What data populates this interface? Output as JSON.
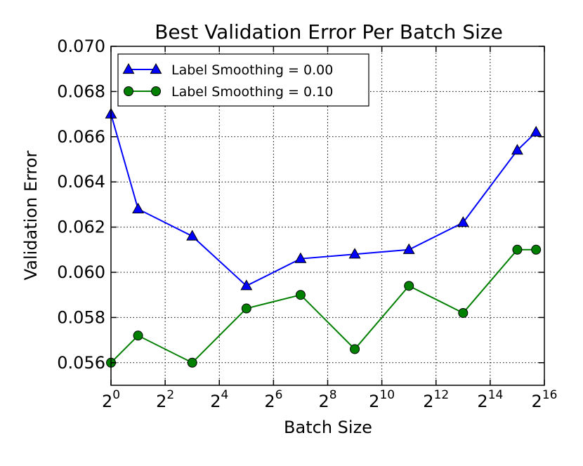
{
  "chart_data": {
    "type": "line",
    "title": "Best Validation Error Per Batch Size",
    "xlabel": "Batch Size",
    "ylabel": "Validation Error",
    "x_scale": "log2",
    "xlim": [
      1,
      65536
    ],
    "ylim": [
      0.055,
      0.07
    ],
    "x_ticks": [
      {
        "base": "2",
        "exp": "0"
      },
      {
        "base": "2",
        "exp": "2"
      },
      {
        "base": "2",
        "exp": "4"
      },
      {
        "base": "2",
        "exp": "6"
      },
      {
        "base": "2",
        "exp": "8"
      },
      {
        "base": "2",
        "exp": "10"
      },
      {
        "base": "2",
        "exp": "12"
      },
      {
        "base": "2",
        "exp": "14"
      },
      {
        "base": "2",
        "exp": "16"
      }
    ],
    "y_ticks": [
      "0.056",
      "0.058",
      "0.060",
      "0.062",
      "0.064",
      "0.066",
      "0.068",
      "0.070"
    ],
    "grid": true,
    "legend_position": "top-left",
    "series": [
      {
        "name": "Label Smoothing = 0.00",
        "color": "#0000ff",
        "marker": "triangle",
        "x": [
          1,
          2,
          8,
          32,
          128,
          512,
          2048,
          8192,
          32768,
          53000
        ],
        "y": [
          0.067,
          0.0628,
          0.0616,
          0.0594,
          0.0606,
          0.0608,
          0.061,
          0.0622,
          0.0654,
          0.0662
        ]
      },
      {
        "name": "Label Smoothing = 0.10",
        "color": "#008000",
        "marker": "circle",
        "x": [
          1,
          2,
          8,
          32,
          128,
          512,
          2048,
          8192,
          32768,
          53000
        ],
        "y": [
          0.056,
          0.0572,
          0.056,
          0.0584,
          0.059,
          0.0566,
          0.0594,
          0.0582,
          0.061,
          0.061
        ]
      }
    ]
  }
}
